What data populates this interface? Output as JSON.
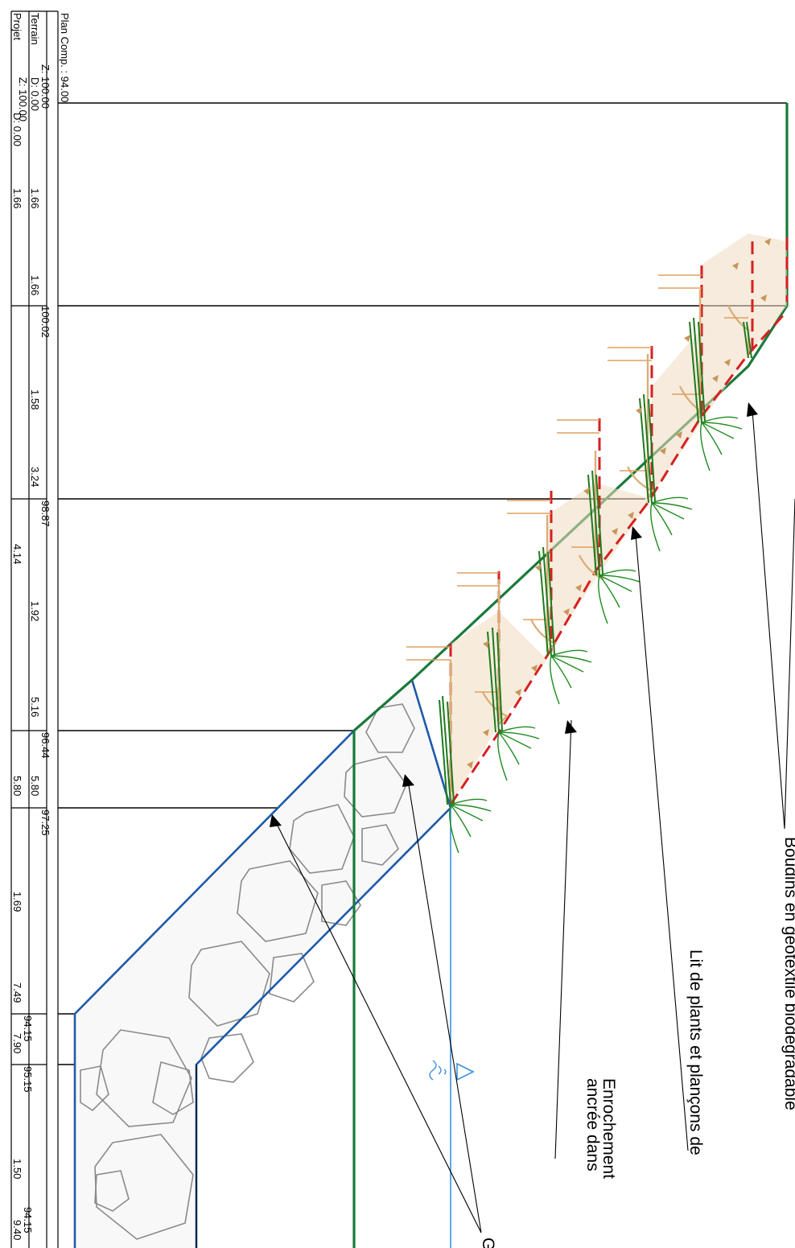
{
  "profile_table": {
    "rows": [
      {
        "id": "plan",
        "label": "Plan Comp. : 94.00"
      },
      {
        "id": "terrain",
        "label": "Terrain",
        "z_label": "Z: 100.00",
        "d_label": "D: 0.00"
      },
      {
        "id": "projet",
        "label": "Projet",
        "z_label": "Z: 100.00",
        "d_label": "D: 0.00"
      }
    ],
    "terrain_values": [
      "1.66",
      "1.66",
      "1.58",
      "3.24",
      "1.92",
      "5.16",
      "5.80",
      "1.69",
      "7.49",
      "7.90",
      "1.50",
      "9.40"
    ],
    "elevations": [
      "100.02",
      "98.87",
      "96.44",
      "97.25",
      "94.15",
      "95.15",
      "94.15"
    ],
    "projet_values": [
      "1.66",
      "4.14",
      "5.80"
    ]
  },
  "annotations": [
    {
      "id": "fascines",
      "text": "Boudins en géotextile biodégradable"
    },
    {
      "id": "lit",
      "text": "Lit de plants et plançons de"
    },
    {
      "id": "enro1",
      "text": "Enrochement"
    },
    {
      "id": "enro2",
      "text": "ancrée dans"
    },
    {
      "id": "geo",
      "text": "Géo"
    }
  ],
  "colors": {
    "terrain": "#1a7a3a",
    "riprap": "#1e5aa8",
    "water": "#3a8fe0",
    "geotextile": "#d62020",
    "fill": "#d9b07a",
    "plant": "#1f7a1f"
  }
}
